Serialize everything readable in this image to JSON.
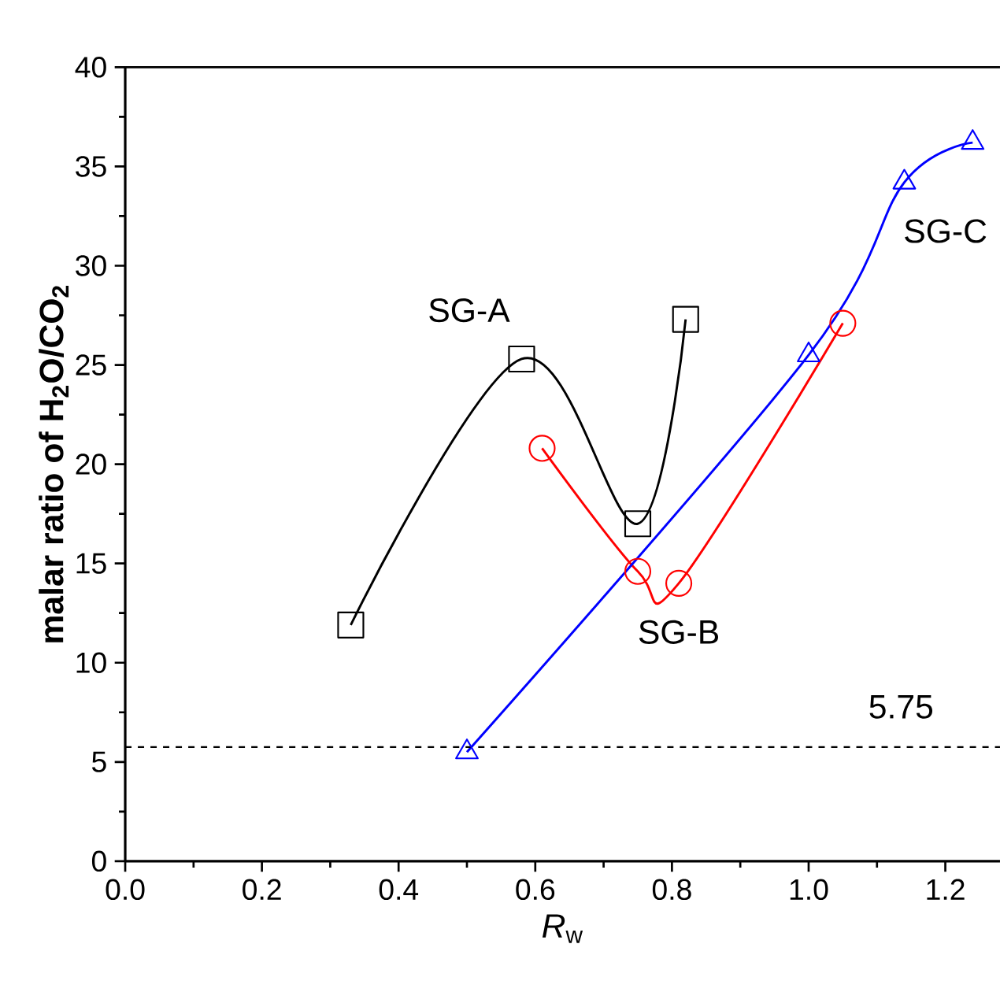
{
  "chart_data": {
    "type": "line",
    "xlabel": "*R*$_{w}$",
    "ylabel": "malar ratio of H$_{2}$O/CO$_{2}$",
    "xlim": [
      0,
      1.28
    ],
    "ylim": [
      0,
      40
    ],
    "xticks": [
      {
        "value": 0,
        "label": "0.0"
      },
      {
        "value": 0.2,
        "label": "0.2"
      },
      {
        "value": 0.4,
        "label": "0.4"
      },
      {
        "value": 0.6,
        "label": "0.6"
      },
      {
        "value": 0.8,
        "label": "0.8"
      },
      {
        "value": 1,
        "label": "1.0"
      },
      {
        "value": 1.2,
        "label": "1.2"
      }
    ],
    "yticks": [
      0,
      5,
      10,
      15,
      20,
      25,
      30,
      35,
      40
    ],
    "grid": false,
    "series": [
      {
        "name": "SG-A",
        "color": "#000000",
        "marker": "square",
        "x": [
          0.33,
          0.58,
          0.75,
          0.82
        ],
        "values": [
          11.9,
          25.3,
          17.0,
          27.3
        ]
      },
      {
        "name": "SG-B",
        "color": "#ff0000",
        "marker": "circle",
        "x": [
          0.61,
          0.75,
          0.81,
          1.05
        ],
        "values": [
          20.8,
          14.6,
          14.0,
          27.1
        ]
      },
      {
        "name": "SG-C",
        "color": "#0000ff",
        "marker": "triangle",
        "x": [
          0.5,
          1.0,
          1.14,
          1.24
        ],
        "values": [
          5.5,
          25.5,
          34.2,
          36.2
        ]
      }
    ],
    "ref_lines": [
      {
        "axis": "y",
        "value": 5.75,
        "label": "5.75",
        "line_style": "dashed",
        "color": "#000000"
      }
    ]
  }
}
